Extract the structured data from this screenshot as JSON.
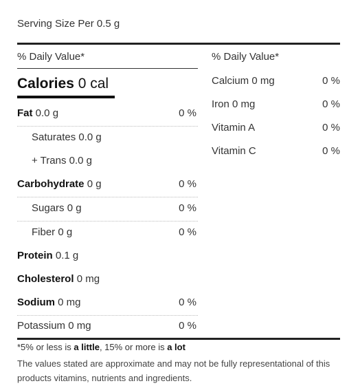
{
  "serving": "Serving Size Per 0.5 g",
  "left_header": "% Daily Value*",
  "right_header": "% Daily Value*",
  "calories": {
    "label": "Calories",
    "value": "0 cal"
  },
  "nutrients": [
    {
      "label": "Fat",
      "value": "0.0 g",
      "pct": "0 %"
    },
    {
      "label": "Saturates",
      "value": "0.0 g",
      "pct": ""
    },
    {
      "label": "+ Trans",
      "value": "0.0 g",
      "pct": ""
    },
    {
      "label": "Carbohydrate",
      "value": "0 g",
      "pct": "0 %"
    },
    {
      "label": "Sugars",
      "value": "0 g",
      "pct": "0 %"
    },
    {
      "label": "Fiber",
      "value": "0 g",
      "pct": "0 %"
    },
    {
      "label": "Protein",
      "value": "0.1 g",
      "pct": ""
    },
    {
      "label": "Cholesterol",
      "value": "0 mg",
      "pct": ""
    },
    {
      "label": "Sodium",
      "value": "0 mg",
      "pct": "0 %"
    },
    {
      "label": "Potassium",
      "value": "0 mg",
      "pct": "0 %"
    }
  ],
  "minerals": [
    {
      "label": "Calcium 0 mg",
      "pct": "0 %"
    },
    {
      "label": "Iron 0 mg",
      "pct": "0 %"
    },
    {
      "label": "Vitamin A",
      "pct": "0 %"
    },
    {
      "label": "Vitamin C",
      "pct": "0 %"
    }
  ],
  "footnote": {
    "prefix": "*5% or less is ",
    "little": "a little",
    "middle": ", 15% or more is ",
    "lot": "a lot",
    "disclaimer": "The values stated are approximate and may not be fully representational of this products vitamins, nutrients and ingredients."
  }
}
